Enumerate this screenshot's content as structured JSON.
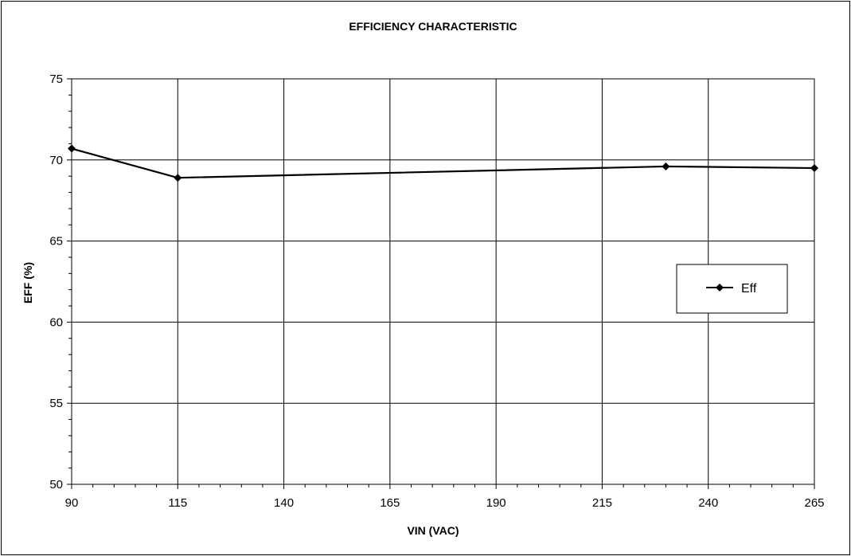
{
  "chart_data": {
    "type": "line",
    "title": "EFFICIENCY CHARACTERISTIC",
    "xlabel": "VIN (VAC)",
    "ylabel": "EFF (%)",
    "xlim": [
      90,
      265
    ],
    "ylim": [
      50,
      75
    ],
    "x_ticks": [
      90,
      115,
      140,
      165,
      190,
      215,
      240,
      265
    ],
    "y_ticks": [
      50,
      55,
      60,
      65,
      70,
      75
    ],
    "grid": true,
    "legend_position": "right",
    "series": [
      {
        "name": "Eff",
        "color": "#000000",
        "marker": "diamond",
        "x": [
          90,
          115,
          230,
          265
        ],
        "y": [
          70.7,
          68.9,
          69.6,
          69.5
        ]
      }
    ]
  }
}
